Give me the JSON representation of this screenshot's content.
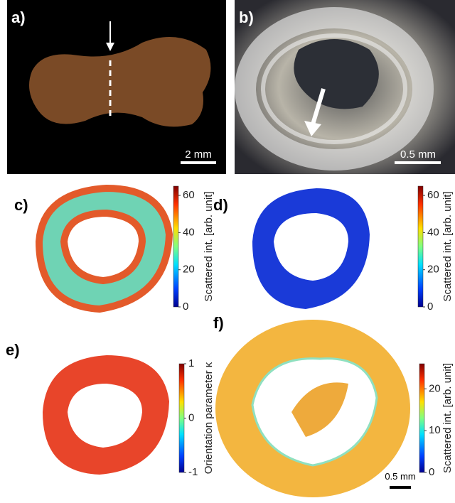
{
  "panels": [
    {
      "label": "a)",
      "scale_bar": "2 mm"
    },
    {
      "label": "b)",
      "scale_bar": "0.5 mm"
    },
    {
      "label": "c)",
      "colorbar": {
        "label": "Scattered int. [arb. unit]",
        "lim": [
          0,
          65
        ],
        "ticks": [
          0,
          20,
          40,
          60
        ]
      }
    },
    {
      "label": "d)",
      "colorbar": {
        "label": "Scattered int. [arb. unit]",
        "lim": [
          0,
          65
        ],
        "ticks": [
          0,
          20,
          40,
          60
        ]
      }
    },
    {
      "label": "e)",
      "colorbar": {
        "label": "Orientation parameter κ",
        "lim": [
          -1,
          1
        ],
        "ticks": [
          -1,
          0,
          1
        ]
      }
    },
    {
      "label": "f)",
      "colorbar": {
        "label": "Scattered int. [arb. unit]",
        "lim": [
          0,
          26
        ],
        "ticks": [
          0,
          10,
          20
        ]
      },
      "scale_bar": "0.5 mm"
    }
  ]
}
